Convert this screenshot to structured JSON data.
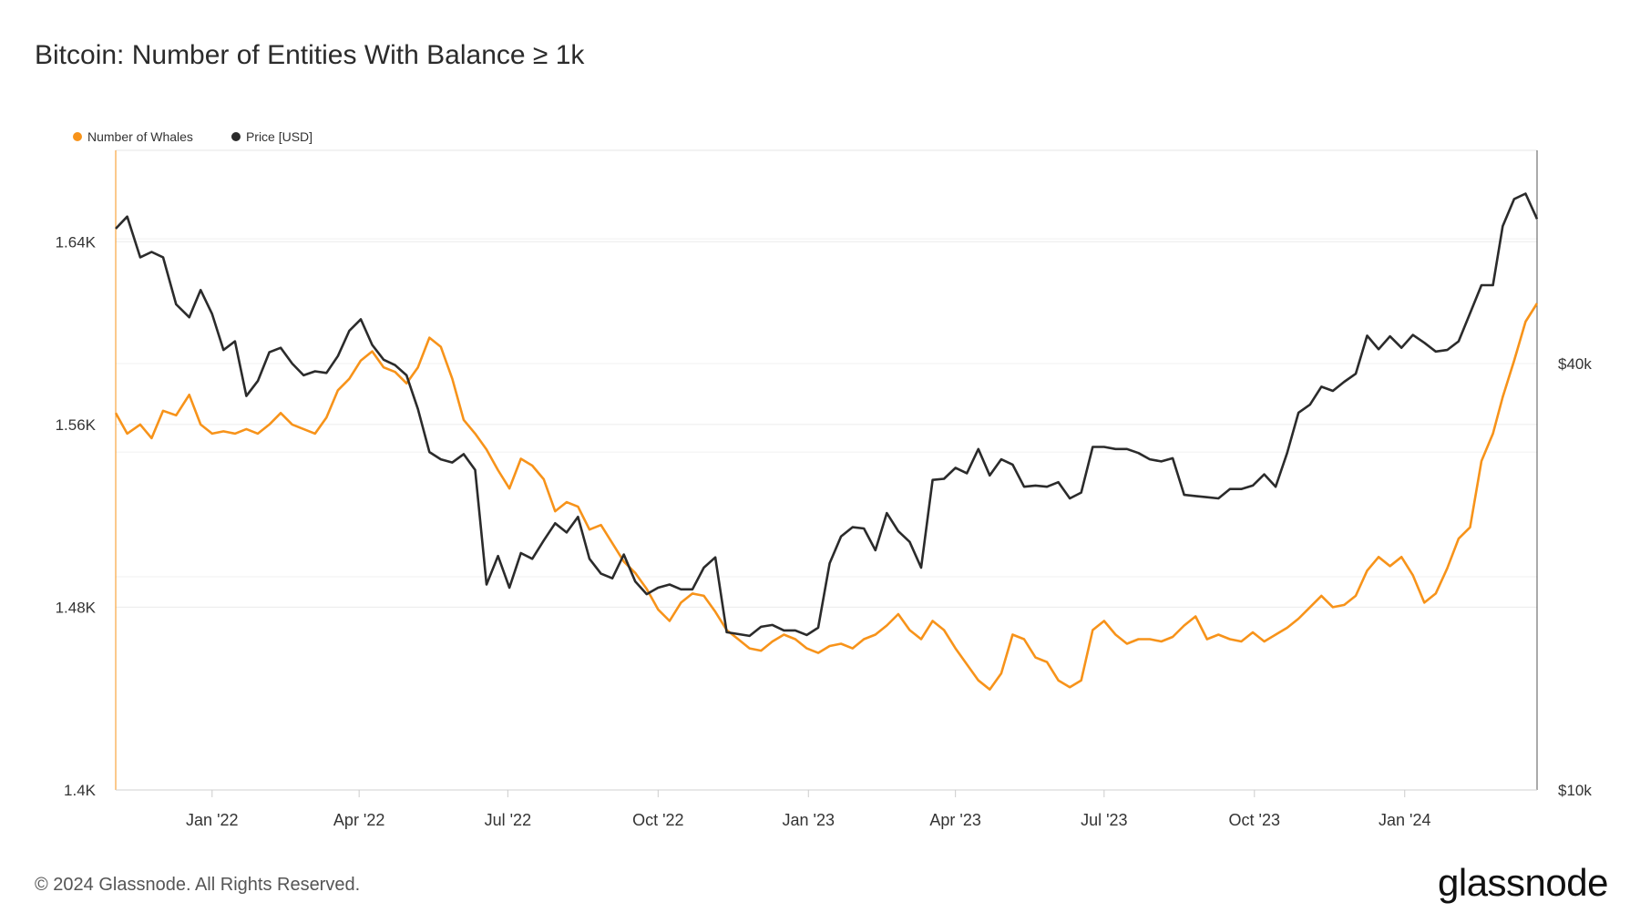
{
  "title": "Bitcoin: Number of Entities With Balance ≥ 1k",
  "legend": [
    {
      "label": "Number of Whales",
      "color": "#f7931a"
    },
    {
      "label": "Price [USD]",
      "color": "#2b2b2b"
    }
  ],
  "footer": {
    "copyright": "© 2024 Glassnode. All Rights Reserved.",
    "brand": "glassnode"
  },
  "chart_data": {
    "type": "line",
    "x_range": [
      "2021-11-03",
      "2024-03-22"
    ],
    "x_ticks": [
      {
        "date": "2022-01-01",
        "label": "Jan '22"
      },
      {
        "date": "2022-04-01",
        "label": "Apr '22"
      },
      {
        "date": "2022-07-01",
        "label": "Jul '22"
      },
      {
        "date": "2022-10-01",
        "label": "Oct '22"
      },
      {
        "date": "2023-01-01",
        "label": "Jan '23"
      },
      {
        "date": "2023-04-01",
        "label": "Apr '23"
      },
      {
        "date": "2023-07-01",
        "label": "Jul '23"
      },
      {
        "date": "2023-10-01",
        "label": "Oct '23"
      },
      {
        "date": "2024-01-01",
        "label": "Jan '24"
      }
    ],
    "y_left": {
      "min": 1400,
      "max": 1680,
      "ticks": [
        {
          "value": 1400,
          "label": "1.4K"
        },
        {
          "value": 1480,
          "label": "1.48K"
        },
        {
          "value": 1560,
          "label": "1.56K"
        },
        {
          "value": 1640,
          "label": "1.64K"
        }
      ]
    },
    "y_right": {
      "scale": "log",
      "min": 10000,
      "max": 80000,
      "ticks": [
        {
          "value": 10000,
          "label": "$10k"
        },
        {
          "value": 40000,
          "label": "$40k"
        }
      ]
    },
    "grid": true,
    "legend_position": "top-left",
    "series": [
      {
        "name": "Number of Whales",
        "axis": "left",
        "color": "#f7931a",
        "points": [
          [
            "2021-11-03",
            1565
          ],
          [
            "2021-11-10",
            1556
          ],
          [
            "2021-11-18",
            1560
          ],
          [
            "2021-11-25",
            1554
          ],
          [
            "2021-12-02",
            1566
          ],
          [
            "2021-12-10",
            1564
          ],
          [
            "2021-12-18",
            1573
          ],
          [
            "2021-12-25",
            1560
          ],
          [
            "2022-01-01",
            1556
          ],
          [
            "2022-01-08",
            1557
          ],
          [
            "2022-01-15",
            1556
          ],
          [
            "2022-01-22",
            1558
          ],
          [
            "2022-01-29",
            1556
          ],
          [
            "2022-02-05",
            1560
          ],
          [
            "2022-02-12",
            1565
          ],
          [
            "2022-02-19",
            1560
          ],
          [
            "2022-02-26",
            1558
          ],
          [
            "2022-03-05",
            1556
          ],
          [
            "2022-03-12",
            1563
          ],
          [
            "2022-03-19",
            1575
          ],
          [
            "2022-03-26",
            1580
          ],
          [
            "2022-04-02",
            1588
          ],
          [
            "2022-04-09",
            1592
          ],
          [
            "2022-04-16",
            1585
          ],
          [
            "2022-04-23",
            1583
          ],
          [
            "2022-04-30",
            1578
          ],
          [
            "2022-05-07",
            1585
          ],
          [
            "2022-05-14",
            1598
          ],
          [
            "2022-05-21",
            1594
          ],
          [
            "2022-05-28",
            1580
          ],
          [
            "2022-06-04",
            1562
          ],
          [
            "2022-06-11",
            1556
          ],
          [
            "2022-06-18",
            1549
          ],
          [
            "2022-06-25",
            1540
          ],
          [
            "2022-07-02",
            1532
          ],
          [
            "2022-07-09",
            1545
          ],
          [
            "2022-07-16",
            1542
          ],
          [
            "2022-07-23",
            1536
          ],
          [
            "2022-07-30",
            1522
          ],
          [
            "2022-08-06",
            1526
          ],
          [
            "2022-08-13",
            1524
          ],
          [
            "2022-08-20",
            1514
          ],
          [
            "2022-08-27",
            1516
          ],
          [
            "2022-09-03",
            1508
          ],
          [
            "2022-09-10",
            1500
          ],
          [
            "2022-09-17",
            1495
          ],
          [
            "2022-09-24",
            1488
          ],
          [
            "2022-10-01",
            1479
          ],
          [
            "2022-10-08",
            1474
          ],
          [
            "2022-10-15",
            1482
          ],
          [
            "2022-10-22",
            1486
          ],
          [
            "2022-10-29",
            1485
          ],
          [
            "2022-11-05",
            1478
          ],
          [
            "2022-11-12",
            1470
          ],
          [
            "2022-11-19",
            1466
          ],
          [
            "2022-11-26",
            1462
          ],
          [
            "2022-12-03",
            1461
          ],
          [
            "2022-12-10",
            1465
          ],
          [
            "2022-12-17",
            1468
          ],
          [
            "2022-12-24",
            1466
          ],
          [
            "2022-12-31",
            1462
          ],
          [
            "2023-01-07",
            1460
          ],
          [
            "2023-01-14",
            1463
          ],
          [
            "2023-01-21",
            1464
          ],
          [
            "2023-01-28",
            1462
          ],
          [
            "2023-02-04",
            1466
          ],
          [
            "2023-02-11",
            1468
          ],
          [
            "2023-02-18",
            1472
          ],
          [
            "2023-02-25",
            1477
          ],
          [
            "2023-03-04",
            1470
          ],
          [
            "2023-03-11",
            1466
          ],
          [
            "2023-03-18",
            1474
          ],
          [
            "2023-03-25",
            1470
          ],
          [
            "2023-04-01",
            1462
          ],
          [
            "2023-04-08",
            1455
          ],
          [
            "2023-04-15",
            1448
          ],
          [
            "2023-04-22",
            1444
          ],
          [
            "2023-04-29",
            1451
          ],
          [
            "2023-05-06",
            1468
          ],
          [
            "2023-05-13",
            1466
          ],
          [
            "2023-05-20",
            1458
          ],
          [
            "2023-05-27",
            1456
          ],
          [
            "2023-06-03",
            1448
          ],
          [
            "2023-06-10",
            1445
          ],
          [
            "2023-06-17",
            1448
          ],
          [
            "2023-06-24",
            1470
          ],
          [
            "2023-07-01",
            1474
          ],
          [
            "2023-07-08",
            1468
          ],
          [
            "2023-07-15",
            1464
          ],
          [
            "2023-07-22",
            1466
          ],
          [
            "2023-07-29",
            1466
          ],
          [
            "2023-08-05",
            1465
          ],
          [
            "2023-08-12",
            1467
          ],
          [
            "2023-08-19",
            1472
          ],
          [
            "2023-08-26",
            1476
          ],
          [
            "2023-09-02",
            1466
          ],
          [
            "2023-09-09",
            1468
          ],
          [
            "2023-09-16",
            1466
          ],
          [
            "2023-09-23",
            1465
          ],
          [
            "2023-09-30",
            1469
          ],
          [
            "2023-10-07",
            1465
          ],
          [
            "2023-10-14",
            1468
          ],
          [
            "2023-10-21",
            1471
          ],
          [
            "2023-10-28",
            1475
          ],
          [
            "2023-11-04",
            1480
          ],
          [
            "2023-11-11",
            1485
          ],
          [
            "2023-11-18",
            1480
          ],
          [
            "2023-11-25",
            1481
          ],
          [
            "2023-12-02",
            1485
          ],
          [
            "2023-12-09",
            1496
          ],
          [
            "2023-12-16",
            1502
          ],
          [
            "2023-12-23",
            1498
          ],
          [
            "2023-12-30",
            1502
          ],
          [
            "2024-01-06",
            1494
          ],
          [
            "2024-01-13",
            1482
          ],
          [
            "2024-01-20",
            1486
          ],
          [
            "2024-01-27",
            1497
          ],
          [
            "2024-02-03",
            1510
          ],
          [
            "2024-02-10",
            1515
          ],
          [
            "2024-02-17",
            1544
          ],
          [
            "2024-02-24",
            1556
          ],
          [
            "2024-03-01",
            1572
          ],
          [
            "2024-03-08",
            1588
          ],
          [
            "2024-03-15",
            1605
          ],
          [
            "2024-03-22",
            1613
          ]
        ]
      },
      {
        "name": "Price [USD]",
        "axis": "right",
        "color": "#2b2b2b",
        "points": [
          [
            "2021-11-03",
            62000
          ],
          [
            "2021-11-10",
            64500
          ],
          [
            "2021-11-18",
            56500
          ],
          [
            "2021-11-25",
            57500
          ],
          [
            "2021-12-02",
            56500
          ],
          [
            "2021-12-10",
            48500
          ],
          [
            "2021-12-18",
            46500
          ],
          [
            "2021-12-25",
            50800
          ],
          [
            "2022-01-01",
            47000
          ],
          [
            "2022-01-08",
            41800
          ],
          [
            "2022-01-15",
            43000
          ],
          [
            "2022-01-22",
            36000
          ],
          [
            "2022-01-29",
            37800
          ],
          [
            "2022-02-05",
            41500
          ],
          [
            "2022-02-12",
            42100
          ],
          [
            "2022-02-19",
            40000
          ],
          [
            "2022-02-26",
            38500
          ],
          [
            "2022-03-05",
            39000
          ],
          [
            "2022-03-12",
            38800
          ],
          [
            "2022-03-19",
            41000
          ],
          [
            "2022-03-26",
            44500
          ],
          [
            "2022-04-02",
            46200
          ],
          [
            "2022-04-09",
            42500
          ],
          [
            "2022-04-16",
            40500
          ],
          [
            "2022-04-23",
            39800
          ],
          [
            "2022-04-30",
            38500
          ],
          [
            "2022-05-07",
            34500
          ],
          [
            "2022-05-14",
            30000
          ],
          [
            "2022-05-21",
            29300
          ],
          [
            "2022-05-28",
            29000
          ],
          [
            "2022-06-04",
            29800
          ],
          [
            "2022-06-11",
            28300
          ],
          [
            "2022-06-18",
            19500
          ],
          [
            "2022-06-25",
            21400
          ],
          [
            "2022-07-02",
            19300
          ],
          [
            "2022-07-09",
            21600
          ],
          [
            "2022-07-16",
            21200
          ],
          [
            "2022-07-23",
            22500
          ],
          [
            "2022-07-30",
            23800
          ],
          [
            "2022-08-06",
            23100
          ],
          [
            "2022-08-13",
            24300
          ],
          [
            "2022-08-20",
            21200
          ],
          [
            "2022-08-27",
            20200
          ],
          [
            "2022-09-03",
            19900
          ],
          [
            "2022-09-10",
            21500
          ],
          [
            "2022-09-17",
            19700
          ],
          [
            "2022-09-24",
            18900
          ],
          [
            "2022-10-01",
            19300
          ],
          [
            "2022-10-08",
            19500
          ],
          [
            "2022-10-15",
            19200
          ],
          [
            "2022-10-22",
            19200
          ],
          [
            "2022-10-29",
            20600
          ],
          [
            "2022-11-05",
            21300
          ],
          [
            "2022-11-12",
            16700
          ],
          [
            "2022-11-19",
            16600
          ],
          [
            "2022-11-26",
            16500
          ],
          [
            "2022-12-03",
            17000
          ],
          [
            "2022-12-10",
            17100
          ],
          [
            "2022-12-17",
            16800
          ],
          [
            "2022-12-24",
            16800
          ],
          [
            "2022-12-31",
            16550
          ],
          [
            "2023-01-07",
            16950
          ],
          [
            "2023-01-14",
            20900
          ],
          [
            "2023-01-21",
            22800
          ],
          [
            "2023-01-28",
            23500
          ],
          [
            "2023-02-04",
            23400
          ],
          [
            "2023-02-11",
            21800
          ],
          [
            "2023-02-18",
            24600
          ],
          [
            "2023-02-25",
            23200
          ],
          [
            "2023-03-04",
            22400
          ],
          [
            "2023-03-11",
            20600
          ],
          [
            "2023-03-18",
            27400
          ],
          [
            "2023-03-25",
            27500
          ],
          [
            "2023-04-01",
            28500
          ],
          [
            "2023-04-08",
            28000
          ],
          [
            "2023-04-15",
            30300
          ],
          [
            "2023-04-22",
            27800
          ],
          [
            "2023-04-29",
            29300
          ],
          [
            "2023-05-06",
            28800
          ],
          [
            "2023-05-13",
            26800
          ],
          [
            "2023-05-20",
            26900
          ],
          [
            "2023-05-27",
            26800
          ],
          [
            "2023-06-03",
            27200
          ],
          [
            "2023-06-10",
            25800
          ],
          [
            "2023-06-17",
            26300
          ],
          [
            "2023-06-24",
            30500
          ],
          [
            "2023-07-01",
            30500
          ],
          [
            "2023-07-08",
            30300
          ],
          [
            "2023-07-15",
            30300
          ],
          [
            "2023-07-22",
            29900
          ],
          [
            "2023-07-29",
            29300
          ],
          [
            "2023-08-05",
            29100
          ],
          [
            "2023-08-12",
            29400
          ],
          [
            "2023-08-19",
            26100
          ],
          [
            "2023-08-26",
            26000
          ],
          [
            "2023-09-02",
            25900
          ],
          [
            "2023-09-09",
            25800
          ],
          [
            "2023-09-16",
            26600
          ],
          [
            "2023-09-23",
            26600
          ],
          [
            "2023-09-30",
            26900
          ],
          [
            "2023-10-07",
            27900
          ],
          [
            "2023-10-14",
            26800
          ],
          [
            "2023-10-21",
            29900
          ],
          [
            "2023-10-28",
            34100
          ],
          [
            "2023-11-04",
            35000
          ],
          [
            "2023-11-11",
            37100
          ],
          [
            "2023-11-18",
            36600
          ],
          [
            "2023-11-25",
            37700
          ],
          [
            "2023-12-02",
            38700
          ],
          [
            "2023-12-09",
            43800
          ],
          [
            "2023-12-16",
            41900
          ],
          [
            "2023-12-23",
            43700
          ],
          [
            "2023-12-30",
            42100
          ],
          [
            "2024-01-06",
            43900
          ],
          [
            "2024-01-13",
            42800
          ],
          [
            "2024-01-20",
            41600
          ],
          [
            "2024-01-27",
            41800
          ],
          [
            "2024-02-03",
            43000
          ],
          [
            "2024-02-10",
            47100
          ],
          [
            "2024-02-17",
            51600
          ],
          [
            "2024-02-24",
            51600
          ],
          [
            "2024-03-01",
            62500
          ],
          [
            "2024-03-08",
            68300
          ],
          [
            "2024-03-15",
            69500
          ],
          [
            "2024-03-22",
            64000
          ]
        ]
      }
    ]
  }
}
